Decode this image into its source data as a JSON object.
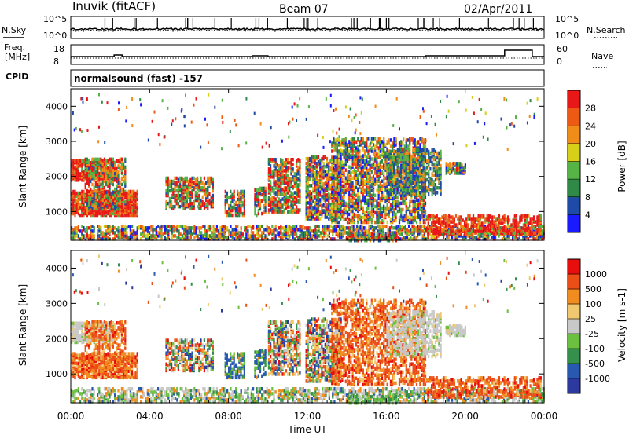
{
  "header": {
    "station": "Inuvik (fitACF)",
    "beam": "Beam 07",
    "date": "02/Apr/2011"
  },
  "top_panels": {
    "nsky_label": "N.Sky",
    "nsearch_label": "N.Search",
    "freq_label_1": "Freq.",
    "freq_label_2": "[MHz]",
    "nave_label": "Nave",
    "cpid_label": "CPID",
    "cpid_text": "normalsound (fast) -157",
    "nsky_ticks_left": [
      "10^5",
      "10^0"
    ],
    "nsearch_ticks_right": [
      "10^5",
      "10^0"
    ],
    "freq_ticks_left": [
      "18",
      "8"
    ],
    "nave_ticks_right": [
      "60",
      "0"
    ]
  },
  "colors": {
    "power_scale": [
      "#1a1aff",
      "#1e4aa8",
      "#2e8a46",
      "#56b446",
      "#d8d018",
      "#f08c18",
      "#ec5a14",
      "#e81818"
    ],
    "velocity_scale": [
      "#e80e0e",
      "#ec4e18",
      "#f08c20",
      "#f0c870",
      "#c8c8c8",
      "#6cc040",
      "#34904a",
      "#2858b0",
      "#2c3aa0"
    ]
  },
  "chart_data": [
    {
      "type": "heatmap",
      "title": "Power",
      "ylabel": "Slant Range [km]",
      "xlabel": "",
      "x_ticks": [
        "00:00",
        "04:00",
        "08:00",
        "12:00",
        "16:00",
        "20:00",
        "00:00"
      ],
      "y_ticks": [
        "1000",
        "2000",
        "3000",
        "4000"
      ],
      "ylim": [
        180,
        4500
      ],
      "xlim_hours": [
        0,
        24
      ],
      "colorbar_label": "Power [dB]",
      "colorbar_ticks": [
        "4",
        "8",
        "12",
        "16",
        "20",
        "24",
        "28"
      ],
      "colorbar_range": [
        0,
        32
      ]
    },
    {
      "type": "heatmap",
      "title": "Velocity",
      "ylabel": "Slant Range [km]",
      "xlabel": "Time UT",
      "x_ticks": [
        "00:00",
        "04:00",
        "08:00",
        "12:00",
        "16:00",
        "20:00",
        "00:00"
      ],
      "y_ticks": [
        "1000",
        "2000",
        "3000",
        "4000"
      ],
      "ylim": [
        180,
        4500
      ],
      "xlim_hours": [
        0,
        24
      ],
      "colorbar_label": "Velocity [m s-1]",
      "colorbar_ticks": [
        "1000",
        "500",
        "100",
        "25",
        "-25",
        "-100",
        "-500",
        "-1000"
      ]
    }
  ]
}
